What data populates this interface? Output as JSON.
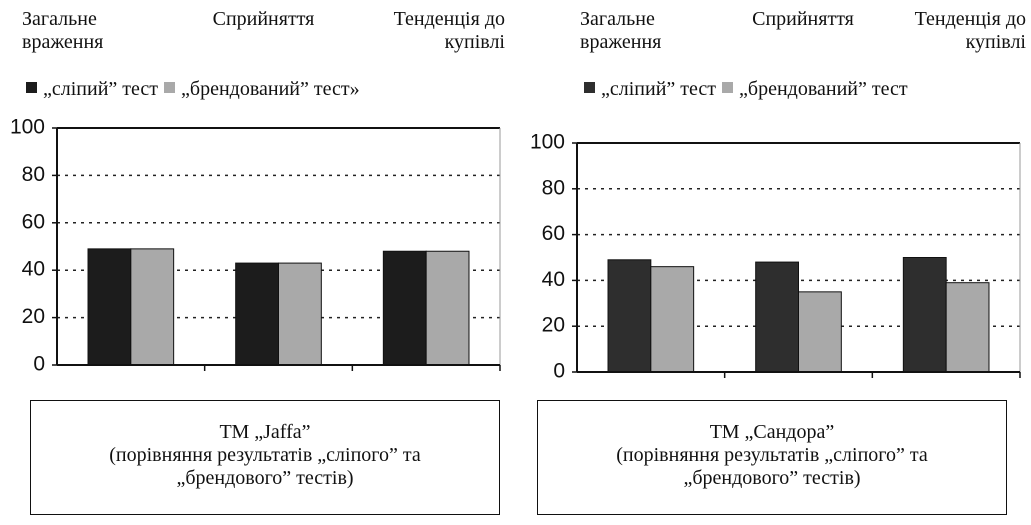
{
  "chart_data": [
    {
      "type": "bar",
      "categories": [
        "Загальне враження",
        "Сприйняття",
        "Тенденція до купівлі"
      ],
      "series": [
        {
          "name": "„сліпий” тест",
          "color": "#1c1c1c",
          "values": [
            49,
            43,
            48
          ]
        },
        {
          "name": "„брендований” тест»",
          "color": "#a9a9a9",
          "values": [
            49,
            43,
            48
          ]
        }
      ],
      "ylim": [
        0,
        100
      ],
      "yticks": [
        0,
        20,
        40,
        60,
        80,
        100
      ],
      "grid": true,
      "title": "ТМ „Jaffa”",
      "subtitle": "(порівняння результатів „сліпого” та „брендового” тестів)"
    },
    {
      "type": "bar",
      "categories": [
        "Загальне враження",
        "Сприйняття",
        "Тенденція до купівлі"
      ],
      "series": [
        {
          "name": "„сліпий” тест",
          "color": "#2e2e2e",
          "values": [
            49,
            48,
            50
          ]
        },
        {
          "name": "„брендований” тест",
          "color": "#a9a9a9",
          "values": [
            46,
            35,
            39
          ]
        }
      ],
      "ylim": [
        0,
        100
      ],
      "yticks": [
        0,
        20,
        40,
        60,
        80,
        100
      ],
      "grid": true,
      "title": "ТМ „Сандора”",
      "subtitle": "(порівняння результатів „сліпого” та „брендового” тестів)"
    }
  ]
}
